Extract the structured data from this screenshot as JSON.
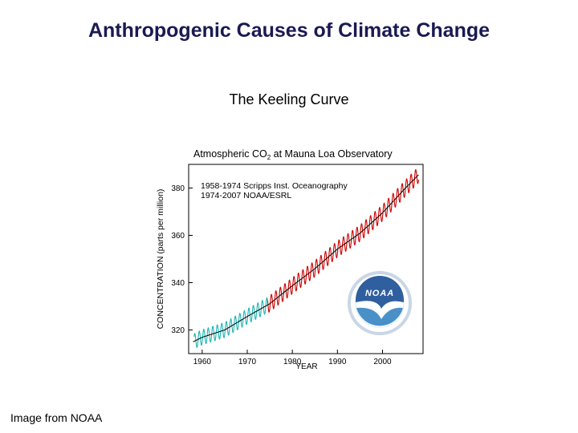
{
  "slide": {
    "title": "Anthropogenic Causes of Climate Change",
    "subtitle": "The Keeling Curve",
    "credit": "Image from NOAA"
  },
  "colors": {
    "title": "#1a1a52",
    "scripps": "#1fb3b3",
    "noaa": "#cc0000",
    "trend": "#000000",
    "logo_blue": "#4a90c8"
  },
  "chart_data": {
    "type": "line",
    "title_pre": "Atmospheric CO",
    "title_sub": "2",
    "title_post": " at Mauna Loa Observatory",
    "legend_line1": "1958-1974 Scripps Inst. Oceanography",
    "legend_line2": "1974-2007 NOAA/ESRL",
    "legend_position": "top-left",
    "xlabel": "YEAR",
    "ylabel": "CONCENTRATION (parts per million)",
    "xlim": [
      1957,
      2009
    ],
    "ylim": [
      310,
      390
    ],
    "xticks": [
      1960,
      1970,
      1980,
      1990,
      2000
    ],
    "yticks": [
      320,
      340,
      360,
      380
    ],
    "grid": false,
    "logo": "noaa-logo",
    "series": [
      {
        "name": "1958-1974 Scripps Inst. Oceanography",
        "color": "#1fb3b3",
        "x_start": 1958.2,
        "x_end": 1974.5,
        "seasonal_amplitude": 3.2
      },
      {
        "name": "1974-2007 NOAA/ESRL",
        "color": "#cc0000",
        "x_start": 1974.5,
        "x_end": 2008.0,
        "seasonal_amplitude": 3.4
      }
    ],
    "trend_points": [
      {
        "x": 1958,
        "y": 315.0
      },
      {
        "x": 1960,
        "y": 316.9
      },
      {
        "x": 1965,
        "y": 320.0
      },
      {
        "x": 1970,
        "y": 325.7
      },
      {
        "x": 1975,
        "y": 331.1
      },
      {
        "x": 1980,
        "y": 338.7
      },
      {
        "x": 1985,
        "y": 345.9
      },
      {
        "x": 1990,
        "y": 354.2
      },
      {
        "x": 1995,
        "y": 360.9
      },
      {
        "x": 2000,
        "y": 369.5
      },
      {
        "x": 2005,
        "y": 379.8
      },
      {
        "x": 2008,
        "y": 385.6
      }
    ]
  }
}
